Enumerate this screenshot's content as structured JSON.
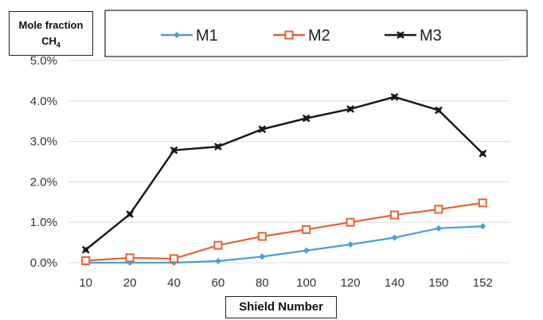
{
  "chart_data": {
    "type": "line",
    "categories": [
      "10",
      "20",
      "40",
      "60",
      "80",
      "100",
      "120",
      "140",
      "150",
      "152"
    ],
    "series": [
      {
        "name": "M1",
        "color": "#4a9fd8",
        "marker": "diamond",
        "values": [
          0.0,
          0.0,
          0.0,
          0.04,
          0.15,
          0.3,
          0.45,
          0.62,
          0.85,
          0.9
        ]
      },
      {
        "name": "M2",
        "color": "#e8622e",
        "marker": "square",
        "values": [
          0.05,
          0.12,
          0.1,
          0.43,
          0.65,
          0.82,
          1.0,
          1.18,
          1.32,
          1.48
        ]
      },
      {
        "name": "M3",
        "color": "#1a1a1a",
        "marker": "x-square",
        "values": [
          0.32,
          1.2,
          2.78,
          2.87,
          3.3,
          3.57,
          3.8,
          4.1,
          3.77,
          2.7
        ]
      }
    ],
    "yticks": [
      "0.0%",
      "1.0%",
      "2.0%",
      "3.0%",
      "4.0%",
      "5.0%"
    ],
    "ylim": [
      0,
      5
    ],
    "ylabel_line1": "Mole fraction",
    "ylabel_line2": "CH",
    "ylabel_sub": "4",
    "xlabel": "Shield Number",
    "grid": true,
    "legend_position": "top"
  }
}
